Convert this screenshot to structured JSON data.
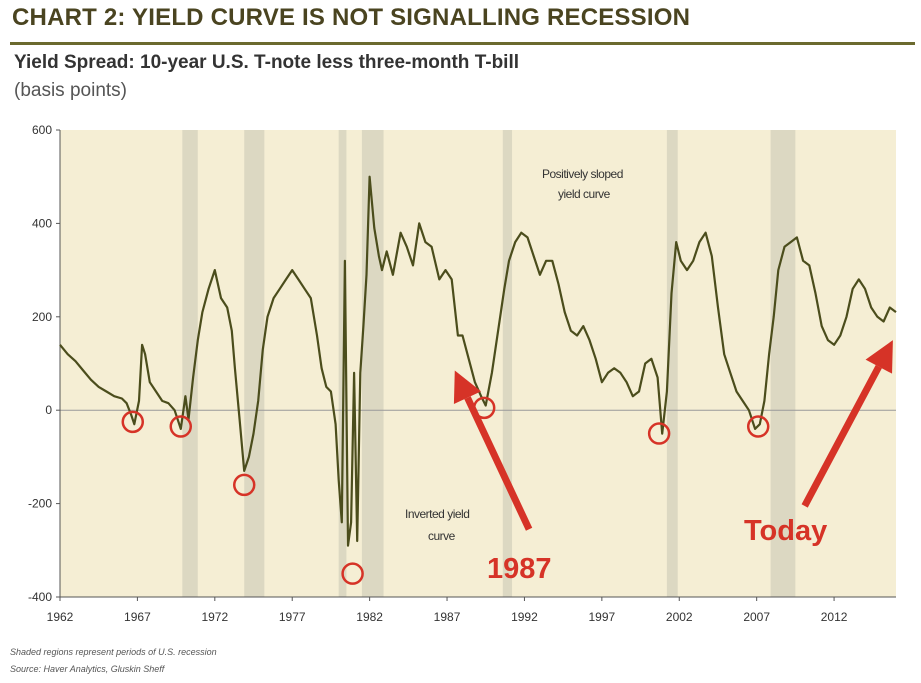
{
  "header": {
    "title": "CHART 2: YIELD CURVE IS NOT SIGNALLING RECESSION",
    "subtitle": "Yield Spread: 10-year U.S. T-note less three-month T-bill",
    "unit": "(basis points)"
  },
  "footnotes": {
    "note": "Shaded regions represent periods of U.S. recession",
    "source": "Source: Haver Analytics, Gluskin Sheff"
  },
  "colors": {
    "title": "#4a4420",
    "rule": "#6b6a2e",
    "plot_bg": "#f5eed4",
    "recession": "#dcd8c2",
    "line": "#4b4d1c",
    "circle": "#d63327",
    "arrow": "#d63327"
  },
  "chart_data": {
    "type": "line",
    "title": "",
    "xlabel": "",
    "ylabel": "",
    "xlim": [
      1962,
      2016
    ],
    "ylim": [
      -400,
      600
    ],
    "x_ticks": [
      "1962",
      "1967",
      "1972",
      "1977",
      "1982",
      "1987",
      "1992",
      "1997",
      "2002",
      "2007",
      "2012"
    ],
    "y_ticks": [
      "600",
      "400",
      "200",
      "0",
      "-200",
      "-400"
    ],
    "grid": false,
    "recessions": [
      [
        1969.9,
        1970.9
      ],
      [
        1973.9,
        1975.2
      ],
      [
        1980.0,
        1980.5
      ],
      [
        1981.5,
        1982.9
      ],
      [
        1990.6,
        1991.2
      ],
      [
        2001.2,
        2001.9
      ],
      [
        2007.9,
        2009.5
      ]
    ],
    "series": [
      {
        "x": [
          1962,
          1962.5,
          1963,
          1963.5,
          1964,
          1964.5,
          1965,
          1965.5,
          1966,
          1966.3,
          1966.6,
          1966.8,
          1967.1,
          1967.3,
          1967.5,
          1967.8,
          1968.2,
          1968.6,
          1969,
          1969.4,
          1969.8,
          1970.1,
          1970.3,
          1970.6,
          1970.9,
          1971.2,
          1971.6,
          1972,
          1972.4,
          1972.8,
          1973.1,
          1973.3,
          1973.6,
          1973.9,
          1974.2,
          1974.5,
          1974.8,
          1975.1,
          1975.4,
          1975.8,
          1976.2,
          1976.6,
          1977,
          1977.4,
          1977.8,
          1978.2,
          1978.6,
          1978.9,
          1979.2,
          1979.5,
          1979.8,
          1980,
          1980.2,
          1980.4,
          1980.6,
          1980.8,
          1981,
          1981.2,
          1981.4,
          1981.6,
          1981.8,
          1982,
          1982.3,
          1982.6,
          1982.8,
          1983.1,
          1983.5,
          1984,
          1984.4,
          1984.8,
          1985.2,
          1985.6,
          1986,
          1986.5,
          1986.9,
          1987.3,
          1987.7,
          1988,
          1988.4,
          1988.8,
          1989.2,
          1989.5,
          1989.9,
          1990.3,
          1990.7,
          1991,
          1991.4,
          1991.8,
          1992.2,
          1992.6,
          1993,
          1993.4,
          1993.8,
          1994.2,
          1994.6,
          1995,
          1995.4,
          1995.8,
          1996.2,
          1996.6,
          1997,
          1997.4,
          1997.8,
          1998.2,
          1998.6,
          1999,
          1999.4,
          1999.8,
          2000.2,
          2000.6,
          2000.9,
          2001.2,
          2001.5,
          2001.8,
          2002.1,
          2002.5,
          2002.9,
          2003.3,
          2003.7,
          2004.1,
          2004.5,
          2004.9,
          2005.3,
          2005.7,
          2006.1,
          2006.5,
          2006.9,
          2007.2,
          2007.5,
          2007.8,
          2008.1,
          2008.4,
          2008.8,
          2009.2,
          2009.6,
          2010,
          2010.4,
          2010.8,
          2011.2,
          2011.6,
          2012,
          2012.4,
          2012.8,
          2013.2,
          2013.6,
          2014,
          2014.4,
          2014.8,
          2015.2,
          2015.6,
          2016
        ],
        "y": [
          140,
          120,
          105,
          85,
          65,
          50,
          40,
          30,
          25,
          15,
          -10,
          -30,
          20,
          140,
          120,
          60,
          40,
          20,
          15,
          0,
          -40,
          30,
          -20,
          70,
          150,
          210,
          260,
          300,
          240,
          220,
          170,
          90,
          -20,
          -130,
          -100,
          -50,
          20,
          130,
          200,
          240,
          260,
          280,
          300,
          280,
          260,
          240,
          160,
          90,
          50,
          40,
          -30,
          -150,
          -240,
          320,
          -290,
          -240,
          80,
          -280,
          80,
          180,
          290,
          500,
          390,
          330,
          300,
          340,
          290,
          380,
          350,
          310,
          400,
          360,
          350,
          280,
          300,
          280,
          160,
          160,
          110,
          60,
          30,
          10,
          80,
          170,
          260,
          320,
          360,
          380,
          370,
          330,
          290,
          320,
          320,
          270,
          210,
          170,
          160,
          180,
          150,
          110,
          60,
          80,
          90,
          80,
          60,
          30,
          40,
          100,
          110,
          70,
          -50,
          40,
          250,
          360,
          320,
          300,
          320,
          360,
          380,
          330,
          220,
          120,
          80,
          40,
          20,
          0,
          -40,
          -30,
          20,
          120,
          200,
          300,
          350,
          360,
          370,
          320,
          310,
          250,
          180,
          150,
          140,
          160,
          200,
          260,
          280,
          260,
          220,
          200,
          190,
          220,
          210
        ]
      }
    ],
    "annotations": {
      "positive_line1": "Positively sloped",
      "positive_line2": "yield curve",
      "inverted_line1": "Inverted yield",
      "inverted_line2": "curve",
      "callout_1987": "1987",
      "callout_today": "Today"
    },
    "circled_points": [
      {
        "x": 1966.7,
        "y": -25
      },
      {
        "x": 1969.8,
        "y": -35
      },
      {
        "x": 1973.9,
        "y": -160
      },
      {
        "x": 1980.9,
        "y": -350
      },
      {
        "x": 1989.4,
        "y": 5
      },
      {
        "x": 2000.7,
        "y": -50
      },
      {
        "x": 2007.1,
        "y": -35
      }
    ],
    "arrows": [
      {
        "from": [
          1992.3,
          -255
        ],
        "to": [
          1987.5,
          85
        ]
      },
      {
        "from": [
          2010.1,
          -205
        ],
        "to": [
          2015.8,
          150
        ]
      }
    ]
  }
}
